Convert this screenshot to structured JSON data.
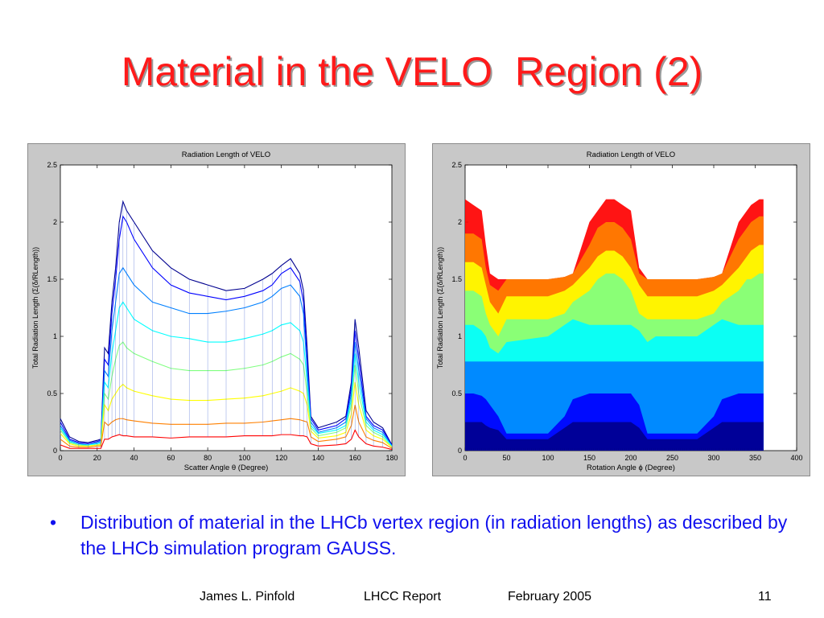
{
  "slide": {
    "title": "Material in the VELO  Region (2)",
    "bullet_marker": "•",
    "bullet_text": "Distribution of material in the LHCb vertex region (in radiation lengths) as described by the LHCb simulation program GAUSS.",
    "footer": {
      "author": "James L. Pinfold",
      "report": "LHCC Report",
      "date": "February 2005",
      "page": "11"
    }
  },
  "chart_data": [
    {
      "type": "line",
      "title": "Radiation Length of VELO",
      "xlabel": "Scatter Angle θ (Degree)",
      "ylabel": "Total Radiation Length (Σ(δ/RLength))",
      "xlim": [
        0,
        180
      ],
      "ylim": [
        0,
        2.5
      ],
      "xticks": [
        0,
        20,
        40,
        60,
        80,
        100,
        120,
        140,
        160,
        180
      ],
      "yticks": [
        0,
        0.5,
        1,
        1.5,
        2,
        2.5
      ],
      "grid": false,
      "colormap": [
        "#00008f",
        "#0000ff",
        "#0080ff",
        "#00ffff",
        "#80ff80",
        "#ffff00",
        "#ff8000",
        "#ff0000"
      ],
      "x": [
        0,
        5,
        10,
        15,
        20,
        22,
        24,
        26,
        28,
        30,
        32,
        34,
        36,
        40,
        50,
        60,
        70,
        80,
        90,
        100,
        110,
        115,
        120,
        125,
        130,
        132,
        134,
        136,
        140,
        150,
        155,
        158,
        160,
        162,
        166,
        170,
        175,
        180
      ],
      "series": [
        {
          "values": [
            0.28,
            0.12,
            0.08,
            0.07,
            0.09,
            0.1,
            0.9,
            0.85,
            1.3,
            1.6,
            2.0,
            2.18,
            2.1,
            2.0,
            1.75,
            1.6,
            1.5,
            1.45,
            1.4,
            1.42,
            1.5,
            1.55,
            1.62,
            1.68,
            1.55,
            1.4,
            0.9,
            0.3,
            0.2,
            0.25,
            0.3,
            0.6,
            1.15,
            0.9,
            0.35,
            0.25,
            0.2,
            0.05
          ]
        },
        {
          "values": [
            0.25,
            0.1,
            0.07,
            0.06,
            0.08,
            0.09,
            0.8,
            0.75,
            1.2,
            1.5,
            1.85,
            2.05,
            2.0,
            1.85,
            1.6,
            1.45,
            1.38,
            1.35,
            1.32,
            1.35,
            1.4,
            1.45,
            1.55,
            1.6,
            1.48,
            1.3,
            0.8,
            0.28,
            0.18,
            0.22,
            0.28,
            0.55,
            1.05,
            0.8,
            0.3,
            0.22,
            0.18,
            0.05
          ]
        },
        {
          "values": [
            0.22,
            0.09,
            0.06,
            0.05,
            0.07,
            0.08,
            0.7,
            0.65,
            1.05,
            1.3,
            1.55,
            1.6,
            1.55,
            1.45,
            1.3,
            1.25,
            1.2,
            1.2,
            1.22,
            1.25,
            1.3,
            1.35,
            1.42,
            1.45,
            1.35,
            1.2,
            0.7,
            0.25,
            0.16,
            0.2,
            0.25,
            0.5,
            0.95,
            0.7,
            0.28,
            0.2,
            0.16,
            0.04
          ]
        },
        {
          "values": [
            0.2,
            0.08,
            0.05,
            0.05,
            0.06,
            0.07,
            0.6,
            0.55,
            0.85,
            1.05,
            1.25,
            1.3,
            1.25,
            1.15,
            1.05,
            1.0,
            0.98,
            0.95,
            0.95,
            0.98,
            1.02,
            1.05,
            1.1,
            1.12,
            1.05,
            0.95,
            0.6,
            0.22,
            0.15,
            0.18,
            0.22,
            0.45,
            0.85,
            0.6,
            0.25,
            0.18,
            0.14,
            0.04
          ]
        },
        {
          "values": [
            0.18,
            0.07,
            0.05,
            0.04,
            0.05,
            0.06,
            0.5,
            0.45,
            0.65,
            0.8,
            0.92,
            0.95,
            0.9,
            0.85,
            0.78,
            0.72,
            0.7,
            0.7,
            0.7,
            0.72,
            0.75,
            0.78,
            0.82,
            0.85,
            0.8,
            0.75,
            0.5,
            0.2,
            0.13,
            0.16,
            0.2,
            0.4,
            0.75,
            0.5,
            0.22,
            0.16,
            0.12,
            0.03
          ]
        },
        {
          "values": [
            0.15,
            0.06,
            0.04,
            0.04,
            0.05,
            0.05,
            0.4,
            0.35,
            0.45,
            0.5,
            0.55,
            0.58,
            0.55,
            0.52,
            0.48,
            0.45,
            0.44,
            0.44,
            0.45,
            0.46,
            0.48,
            0.5,
            0.52,
            0.55,
            0.52,
            0.5,
            0.4,
            0.17,
            0.11,
            0.13,
            0.16,
            0.32,
            0.6,
            0.4,
            0.18,
            0.13,
            0.1,
            0.03
          ]
        },
        {
          "values": [
            0.1,
            0.04,
            0.03,
            0.03,
            0.04,
            0.04,
            0.25,
            0.22,
            0.25,
            0.27,
            0.28,
            0.28,
            0.27,
            0.26,
            0.24,
            0.23,
            0.23,
            0.23,
            0.24,
            0.24,
            0.25,
            0.26,
            0.27,
            0.28,
            0.27,
            0.26,
            0.25,
            0.12,
            0.08,
            0.1,
            0.12,
            0.22,
            0.4,
            0.25,
            0.12,
            0.09,
            0.07,
            0.02
          ]
        },
        {
          "values": [
            0.05,
            0.02,
            0.02,
            0.02,
            0.02,
            0.02,
            0.1,
            0.1,
            0.12,
            0.13,
            0.14,
            0.13,
            0.13,
            0.12,
            0.12,
            0.11,
            0.12,
            0.12,
            0.12,
            0.13,
            0.13,
            0.13,
            0.14,
            0.14,
            0.13,
            0.13,
            0.12,
            0.06,
            0.04,
            0.05,
            0.06,
            0.1,
            0.18,
            0.12,
            0.06,
            0.04,
            0.03,
            0.01
          ]
        }
      ]
    },
    {
      "type": "area",
      "title": "Radiation Length of VELO",
      "xlabel": "Rotation Angle ϕ (Degree)",
      "ylabel": "Total Radiation Length (Σ(δ/RLength))",
      "xlim": [
        0,
        400
      ],
      "ylim": [
        0,
        2.5
      ],
      "xticks": [
        0,
        50,
        100,
        150,
        200,
        250,
        300,
        350,
        400
      ],
      "yticks": [
        0,
        0.5,
        1,
        1.5,
        2,
        2.5
      ],
      "grid": false,
      "colormap": [
        "#00008f",
        "#0000ff",
        "#0080ff",
        "#00ffff",
        "#80ff80",
        "#ffff00",
        "#ff8000",
        "#ff0000"
      ],
      "x": [
        0,
        10,
        20,
        25,
        30,
        40,
        50,
        100,
        120,
        130,
        150,
        160,
        170,
        180,
        190,
        200,
        210,
        220,
        230,
        280,
        300,
        310,
        330,
        340,
        345,
        355,
        360
      ],
      "series": [
        {
          "values": [
            0.25,
            0.25,
            0.25,
            0.22,
            0.2,
            0.18,
            0.1,
            0.1,
            0.2,
            0.25,
            0.25,
            0.25,
            0.25,
            0.25,
            0.25,
            0.25,
            0.2,
            0.1,
            0.1,
            0.1,
            0.2,
            0.25,
            0.25,
            0.25,
            0.25,
            0.25,
            0.25
          ]
        },
        {
          "values": [
            0.5,
            0.5,
            0.48,
            0.45,
            0.4,
            0.3,
            0.15,
            0.15,
            0.3,
            0.45,
            0.5,
            0.5,
            0.5,
            0.5,
            0.5,
            0.5,
            0.4,
            0.15,
            0.15,
            0.15,
            0.3,
            0.45,
            0.5,
            0.5,
            0.5,
            0.5,
            0.5
          ]
        },
        {
          "values": [
            0.78,
            0.78,
            0.78,
            0.78,
            0.78,
            0.78,
            0.78,
            0.78,
            0.78,
            0.78,
            0.78,
            0.78,
            0.78,
            0.78,
            0.78,
            0.78,
            0.78,
            0.78,
            0.78,
            0.78,
            0.78,
            0.78,
            0.78,
            0.78,
            0.78,
            0.78,
            0.78
          ]
        },
        {
          "values": [
            1.1,
            1.1,
            1.05,
            1.0,
            0.9,
            0.85,
            0.95,
            1.0,
            1.1,
            1.15,
            1.1,
            1.1,
            1.1,
            1.1,
            1.1,
            1.1,
            1.05,
            0.95,
            1.0,
            1.0,
            1.1,
            1.15,
            1.1,
            1.1,
            1.1,
            1.1,
            1.1
          ]
        },
        {
          "values": [
            1.4,
            1.4,
            1.35,
            1.2,
            1.1,
            1.0,
            1.15,
            1.15,
            1.2,
            1.3,
            1.4,
            1.5,
            1.55,
            1.55,
            1.5,
            1.4,
            1.2,
            1.15,
            1.15,
            1.15,
            1.2,
            1.3,
            1.4,
            1.5,
            1.5,
            1.55,
            1.55
          ]
        },
        {
          "values": [
            1.65,
            1.65,
            1.6,
            1.45,
            1.3,
            1.2,
            1.35,
            1.35,
            1.4,
            1.45,
            1.6,
            1.7,
            1.75,
            1.75,
            1.7,
            1.6,
            1.45,
            1.35,
            1.35,
            1.35,
            1.4,
            1.45,
            1.6,
            1.7,
            1.75,
            1.8,
            1.8
          ]
        },
        {
          "values": [
            1.9,
            1.9,
            1.85,
            1.6,
            1.45,
            1.4,
            1.5,
            1.5,
            1.52,
            1.55,
            1.8,
            1.95,
            2.0,
            2.0,
            1.95,
            1.85,
            1.55,
            1.5,
            1.5,
            1.5,
            1.52,
            1.55,
            1.85,
            1.95,
            2.0,
            2.05,
            2.05
          ]
        },
        {
          "values": [
            2.2,
            2.15,
            2.1,
            1.8,
            1.55,
            1.5,
            1.5,
            1.5,
            1.52,
            1.55,
            2.0,
            2.1,
            2.2,
            2.2,
            2.15,
            2.1,
            1.6,
            1.5,
            1.5,
            1.5,
            1.52,
            1.55,
            2.0,
            2.1,
            2.15,
            2.2,
            2.2
          ]
        }
      ]
    }
  ]
}
